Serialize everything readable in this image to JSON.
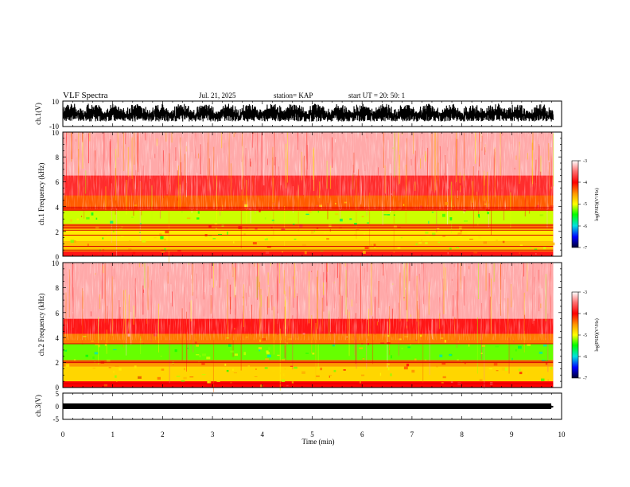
{
  "header": {
    "title": "VLF Spectra",
    "date": "Jul. 21, 2025",
    "station": "station= KAP",
    "start": "start  UT =   20: 50: 1"
  },
  "colorbar": {
    "label": "log(PSD)(V²/Hz)",
    "ticks": [
      "-3",
      "-4",
      "-5",
      "-6",
      "-7"
    ]
  },
  "chart_data": [
    {
      "type": "line",
      "title": "VLF Spectra",
      "panel": "ch.1 waveform",
      "ylabel": "ch.1(V)",
      "ylim": [
        -10,
        10
      ],
      "yticks": [
        "10",
        "-10"
      ],
      "xlim": [
        0,
        10
      ],
      "series": [
        {
          "name": "ch.1 amplitude envelope",
          "x": [
            0,
            9.83
          ],
          "y_range": [
            -6,
            8
          ]
        }
      ]
    },
    {
      "type": "heatmap",
      "panel": "ch.1 spectrogram",
      "ylabel": "ch.1 Frequency (kHz)",
      "ylim": [
        0,
        10
      ],
      "yticks": [
        "0",
        "2",
        "4",
        "6",
        "8",
        "10"
      ],
      "xlim": [
        0,
        10
      ],
      "data_end_min": 9.83,
      "bands_khz": [
        {
          "from": 0,
          "to": 0.4,
          "level": -3.9
        },
        {
          "from": 0.4,
          "to": 1.2,
          "level": -4.7
        },
        {
          "from": 1.2,
          "to": 2.2,
          "level": -4.9
        },
        {
          "from": 2.2,
          "to": 2.6,
          "level": -4.4
        },
        {
          "from": 2.6,
          "to": 3.7,
          "level": -5.1
        },
        {
          "from": 3.7,
          "to": 4.0,
          "level": -4.2
        },
        {
          "from": 4.0,
          "to": 4.9,
          "level": -4.3
        },
        {
          "from": 4.9,
          "to": 6.5,
          "level": -3.8
        },
        {
          "from": 6.5,
          "to": 10,
          "level": -3.3
        }
      ],
      "lines_khz": [
        0.5,
        0.8,
        1.7,
        2.1,
        2.3,
        2.5,
        3.7,
        3.9
      ],
      "colorbar_range": [
        -7,
        -3
      ]
    },
    {
      "type": "heatmap",
      "panel": "ch.2 spectrogram",
      "ylabel": "ch.2 Frequency (kHz)",
      "ylim": [
        0,
        10
      ],
      "yticks": [
        "0",
        "2",
        "4",
        "6",
        "8",
        "10"
      ],
      "xlim": [
        0,
        10
      ],
      "data_end_min": 9.83,
      "bands_khz": [
        {
          "from": 0,
          "to": 0.5,
          "level": -4.0
        },
        {
          "from": 0.5,
          "to": 1.7,
          "level": -4.8
        },
        {
          "from": 1.7,
          "to": 2.2,
          "level": -4.5
        },
        {
          "from": 2.2,
          "to": 3.5,
          "level": -5.3
        },
        {
          "from": 3.5,
          "to": 4.3,
          "level": -4.4
        },
        {
          "from": 4.3,
          "to": 5.5,
          "level": -3.9
        },
        {
          "from": 5.5,
          "to": 10,
          "level": -3.3
        }
      ],
      "lines_khz": [
        0.3,
        2.0,
        2.1,
        3.5
      ],
      "colorbar_range": [
        -7,
        -3
      ]
    },
    {
      "type": "line",
      "panel": "ch.3 waveform",
      "ylabel": "ch.3(V)",
      "ylim": [
        -5,
        5
      ],
      "yticks": [
        "5",
        "0",
        "-5"
      ],
      "xlim": [
        0,
        10
      ],
      "xlabel": "Time (min)",
      "xticks": [
        "0",
        "1",
        "2",
        "3",
        "4",
        "5",
        "6",
        "7",
        "8",
        "9",
        "10"
      ],
      "series": [
        {
          "name": "ch.3 amplitude envelope",
          "x": [
            0,
            9.83
          ],
          "y_range": [
            -0.6,
            0.6
          ]
        }
      ]
    }
  ]
}
